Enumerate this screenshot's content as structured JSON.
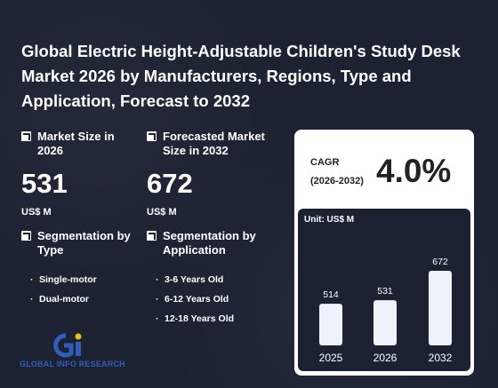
{
  "title": "Global Electric Height-Adjustable Children's Study Desk Market 2026 by Manufacturers, Regions, Type and Application, Forecast to 2032",
  "market_size": {
    "label": "Market Size in 2026",
    "value": "531",
    "unit": "US$ M"
  },
  "forecast": {
    "label": "Forecasted Market Size in 2032",
    "value": "672",
    "unit": "US$ M"
  },
  "segmentation_type": {
    "label": "Segmentation by Type",
    "items": [
      "Single-motor",
      "Dual-motor"
    ]
  },
  "segmentation_application": {
    "label": "Segmentation by Application",
    "items": [
      "3-6 Years Old",
      "6-12 Years Old",
      "12-18 Years Old"
    ]
  },
  "cagr": {
    "label_line1": "CAGR",
    "label_line2": "(2026-2032)",
    "value": "4.0%"
  },
  "chart_unit": "Unit: US$ M",
  "chart_data": {
    "type": "bar",
    "categories": [
      "2025",
      "2026",
      "2032"
    ],
    "values": [
      514,
      531,
      672
    ],
    "ylabel": "",
    "xlabel": "",
    "ylim": [
      0,
      700
    ],
    "color": "#eef3fb"
  },
  "logo": {
    "text": "GLOBAL INFO RESEARCH",
    "watermark": "GLOBAL INFO RESEARCH"
  },
  "colors": {
    "background": "#1d2233",
    "card": "#ffffff",
    "bar": "#eef3fb",
    "logo_blue": "#2f5fb8",
    "logo_yellow": "#e8c21a"
  }
}
